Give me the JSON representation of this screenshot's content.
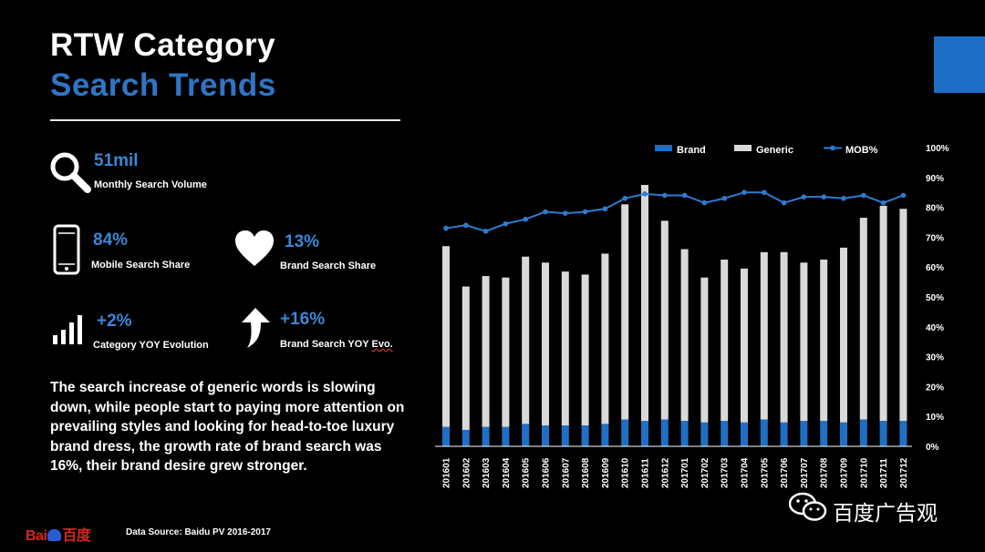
{
  "header": {
    "title_line1": "RTW Category",
    "title_line2": "Search Trends"
  },
  "stats": {
    "volume": {
      "value": "51mil",
      "label": "Monthly Search Volume",
      "icon": "search-icon"
    },
    "mobile": {
      "value": "84%",
      "label": "Mobile Search Share",
      "icon": "smartphone-icon"
    },
    "brand": {
      "value": "13%",
      "label": "Brand Search Share",
      "icon": "heart-icon"
    },
    "category_yoy": {
      "value": "+2%",
      "label": "Category YOY Evolution",
      "icon": "signal-bars-icon"
    },
    "brand_yoy": {
      "value": "+16%",
      "label": "Brand Search YOY Evo.",
      "icon": "arrow-up-icon"
    }
  },
  "summary": "The search increase of generic words is slowing down, while people start to paying more attention on prevailing styles and looking for head-to-toe luxury brand dress, the growth rate of brand search was 16%, their brand desire grew stronger.",
  "footer": {
    "source": "Data Source: Baidu PV 2016-2017",
    "logo_text": "Bai百度",
    "watermark": "百度广告观"
  },
  "colors": {
    "accent": "#1e6ec8",
    "brand_bar": "#1f6fc5",
    "generic_bar": "#d9d9d9",
    "mob_line": "#2e7bcf",
    "background": "#000000"
  },
  "chart_data": {
    "type": "bar",
    "stacked": true,
    "title": "",
    "categories": [
      "201601",
      "201602",
      "201603",
      "201604",
      "201605",
      "201606",
      "201607",
      "201608",
      "201609",
      "201610",
      "201611",
      "201612",
      "201701",
      "201702",
      "201703",
      "201704",
      "201705",
      "201706",
      "201707",
      "201708",
      "201709",
      "201710",
      "201711",
      "201712"
    ],
    "series": [
      {
        "name": "Brand",
        "kind": "bar",
        "values": [
          6.5,
          5.5,
          6.5,
          6.5,
          7.5,
          7,
          7,
          7,
          7.5,
          9,
          8.5,
          9,
          8.5,
          8,
          8.5,
          8,
          9,
          8,
          8.5,
          8.5,
          8,
          9,
          8.5,
          8.5
        ]
      },
      {
        "name": "Generic",
        "kind": "bar",
        "values": [
          60.5,
          48,
          50.5,
          50,
          56,
          54.5,
          51.5,
          50.5,
          57,
          72,
          79,
          66.5,
          57.5,
          48.5,
          54,
          51.5,
          56,
          57,
          53,
          54,
          58.5,
          67.5,
          72,
          71
        ]
      },
      {
        "name": "MOB%",
        "kind": "line",
        "values": [
          73,
          74,
          72,
          74.5,
          76,
          78.5,
          78,
          78.5,
          79.5,
          83,
          84.5,
          84,
          84,
          81.5,
          83,
          85,
          85,
          81.5,
          83.5,
          83.5,
          83,
          84,
          81.5,
          84
        ]
      }
    ],
    "ylim": [
      0,
      100
    ],
    "yticks": [
      "0%",
      "10%",
      "20%",
      "30%",
      "40%",
      "50%",
      "60%",
      "70%",
      "80%",
      "90%",
      "100%"
    ],
    "legend": [
      "Brand",
      "Generic",
      "MOB%"
    ],
    "legend_position": "top",
    "xlabel": "",
    "ylabel": ""
  }
}
